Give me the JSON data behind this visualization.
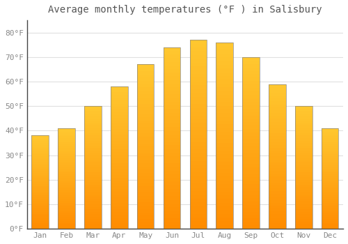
{
  "title": "Average monthly temperatures (°F ) in Salisbury",
  "months": [
    "Jan",
    "Feb",
    "Mar",
    "Apr",
    "May",
    "Jun",
    "Jul",
    "Aug",
    "Sep",
    "Oct",
    "Nov",
    "Dec"
  ],
  "values": [
    38,
    41,
    50,
    58,
    67,
    74,
    77,
    76,
    70,
    59,
    50,
    41
  ],
  "ylim": [
    0,
    85
  ],
  "yticks": [
    0,
    10,
    20,
    30,
    40,
    50,
    60,
    70,
    80
  ],
  "ytick_labels": [
    "0°F",
    "10°F",
    "20°F",
    "30°F",
    "40°F",
    "50°F",
    "60°F",
    "70°F",
    "80°F"
  ],
  "background_color": "#ffffff",
  "plot_bg_color": "#ffffff",
  "grid_color": "#e0e0e0",
  "title_fontsize": 10,
  "tick_fontsize": 8,
  "bar_color_top": "#FFC020",
  "bar_color_bottom": "#FF8C00",
  "bar_edge_color": "#888888",
  "bar_width": 0.65
}
